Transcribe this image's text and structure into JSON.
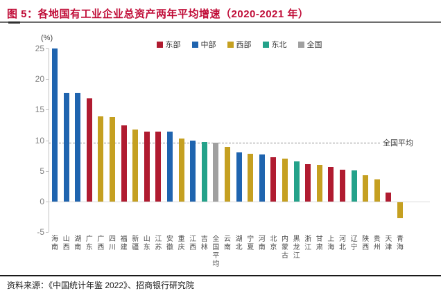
{
  "header": {
    "title": "图 5：各地国有工业企业总资产两年平均增速（2020-2021 年）"
  },
  "footer": {
    "source": "资料来源：《中国统计年鉴 2022》、招商银行研究院"
  },
  "colors": {
    "title": "#C00D38",
    "east": "#B01B30",
    "central": "#1F64AF",
    "west": "#C5A021",
    "northeast": "#24A28A",
    "national": "#A0A0A0",
    "axis": "#C0C0C0",
    "avg_line": "#8C8C8C"
  },
  "chart_data": {
    "type": "bar",
    "title": "各地国有工业企业总资产两年平均增速（2020-2021 年）",
    "unit_label": "(%)",
    "ylabel": "",
    "xlabel": "",
    "ylim": [
      -5,
      25
    ],
    "yticks": [
      25,
      20,
      15,
      10,
      5,
      0,
      -5
    ],
    "grid": false,
    "legend_position": "top",
    "legend": [
      {
        "label": "东部",
        "key": "east"
      },
      {
        "label": "中部",
        "key": "central"
      },
      {
        "label": "西部",
        "key": "west"
      },
      {
        "label": "东北",
        "key": "northeast"
      },
      {
        "label": "全国",
        "key": "national"
      }
    ],
    "average_line": {
      "value": 9.6,
      "label": "全国平均"
    },
    "categories": [
      "海南",
      "山西",
      "湖南",
      "广东",
      "广西",
      "四川",
      "福建",
      "新疆",
      "山东",
      "江苏",
      "安徽",
      "重庆",
      "江西",
      "吉林",
      "全国平均",
      "云南",
      "湖北",
      "宁夏",
      "河南",
      "北京",
      "内蒙古",
      "黑龙江",
      "浙江",
      "甘肃",
      "上海",
      "河北",
      "辽宁",
      "陕西",
      "贵州",
      "天津",
      "青海"
    ],
    "values": [
      25.0,
      17.8,
      17.7,
      16.8,
      13.9,
      13.8,
      12.4,
      11.7,
      11.4,
      11.4,
      11.4,
      10.3,
      9.9,
      9.7,
      9.6,
      8.9,
      8.0,
      7.8,
      7.7,
      7.2,
      7.0,
      6.5,
      6.1,
      6.0,
      5.6,
      5.2,
      5.1,
      4.3,
      3.6,
      1.4,
      -2.6
    ],
    "regions": [
      "central",
      "central",
      "central",
      "east",
      "west",
      "west",
      "east",
      "west",
      "east",
      "east",
      "central",
      "west",
      "central",
      "northeast",
      "national",
      "west",
      "central",
      "west",
      "central",
      "east",
      "west",
      "northeast",
      "east",
      "west",
      "east",
      "east",
      "northeast",
      "west",
      "west",
      "east",
      "west"
    ]
  }
}
